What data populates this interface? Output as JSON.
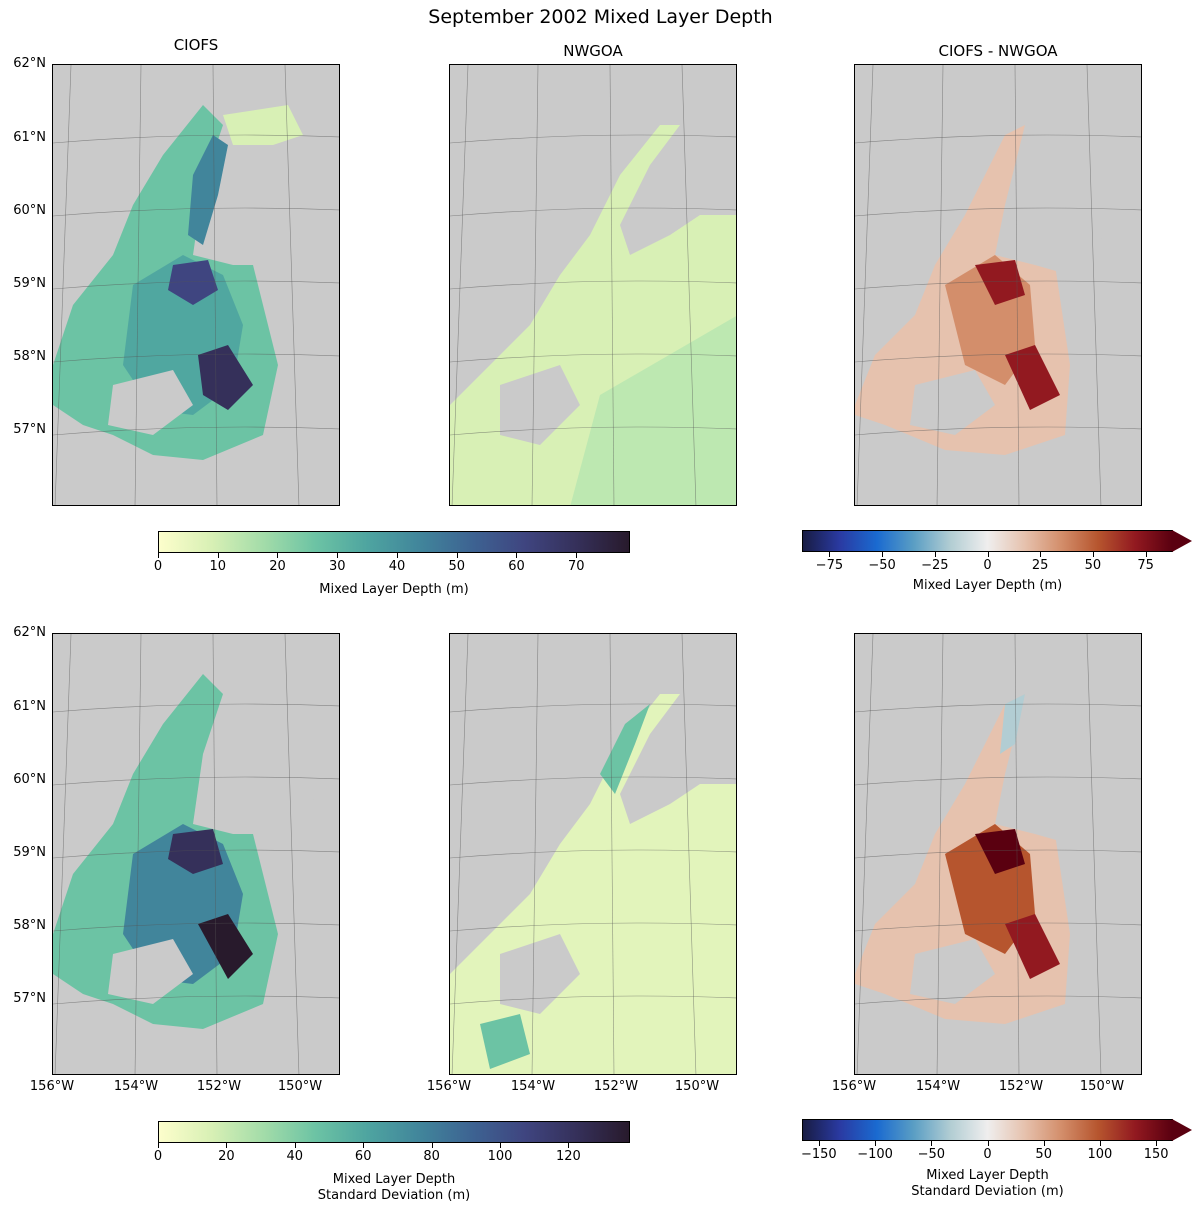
{
  "figure": {
    "title": "September 2002 Mixed Layer Depth",
    "column_titles": [
      "CIOFS",
      "NWGOA",
      "CIOFS - NWGOA"
    ]
  },
  "axes": {
    "lat_labels": [
      "62°N",
      "61°N",
      "60°N",
      "59°N",
      "58°N",
      "57°N"
    ],
    "lon_labels": [
      "156°W",
      "154°W",
      "152°W",
      "150°W"
    ]
  },
  "colorbars": {
    "top_mld": {
      "label": "Mixed Layer Depth (m)",
      "ticks": [
        "0",
        "10",
        "20",
        "30",
        "40",
        "50",
        "60",
        "70"
      ],
      "range": [
        0,
        79
      ],
      "colormap": "deep",
      "colors": [
        "#fdfecc",
        "#d8f0b5",
        "#a3dca9",
        "#6cc3a4",
        "#4ea4a0",
        "#41859b",
        "#3d6392",
        "#3f4580",
        "#35305a",
        "#281a2c"
      ]
    },
    "top_diff": {
      "label": "Mixed Layer Depth (m)",
      "ticks": [
        "−75",
        "−50",
        "−25",
        "0",
        "25",
        "50",
        "75"
      ],
      "range": [
        -88,
        88
      ],
      "extend": "max",
      "colormap": "balance",
      "colors": [
        "#181c43",
        "#2a3aa2",
        "#1a6ad0",
        "#5a9ec4",
        "#b2cdd3",
        "#efeeee",
        "#e6c2ae",
        "#d38e6b",
        "#b6552e",
        "#921920",
        "#5a0010"
      ]
    },
    "bottom_std": {
      "label_line1": "Mixed Layer Depth",
      "label_line2": "Standard Deviation (m)",
      "ticks": [
        "0",
        "20",
        "40",
        "60",
        "80",
        "100",
        "120"
      ],
      "range": [
        0,
        138
      ],
      "colormap": "deep",
      "colors": [
        "#fdfecc",
        "#d8f0b5",
        "#a3dca9",
        "#6cc3a4",
        "#4ea4a0",
        "#41859b",
        "#3d6392",
        "#3f4580",
        "#35305a",
        "#281a2c"
      ]
    },
    "bottom_diff": {
      "label_line1": "Mixed Layer Depth",
      "label_line2": "Standard Deviation (m)",
      "ticks": [
        "−150",
        "−100",
        "−50",
        "0",
        "50",
        "100",
        "150"
      ],
      "range": [
        -165,
        165
      ],
      "extend": "max",
      "colormap": "balance",
      "colors": [
        "#181c43",
        "#2a3aa2",
        "#1a6ad0",
        "#5a9ec4",
        "#b2cdd3",
        "#efeeee",
        "#e6c2ae",
        "#d38e6b",
        "#b6552e",
        "#921920",
        "#5a0010"
      ]
    }
  },
  "colors": {
    "land": "#cacaca",
    "ocean_blank": "#ffffff",
    "gridline": "#555555"
  }
}
